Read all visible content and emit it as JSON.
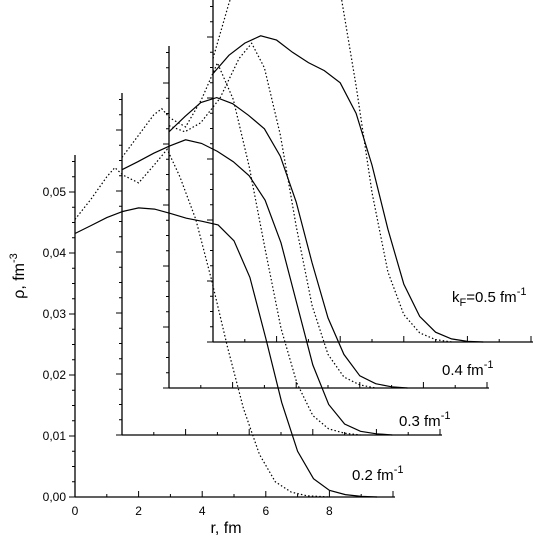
{
  "chart_data": {
    "type": "line",
    "description_free": true,
    "xlabel": "r, fm",
    "ylabel": "ρ, fm",
    "ylabel_superscript": "-3",
    "xlim": [
      0,
      10
    ],
    "ylim": [
      0,
      0.057
    ],
    "x_ticks": [
      {
        "value": 0,
        "label": "0"
      },
      {
        "value": 2,
        "label": "2"
      },
      {
        "value": 4,
        "label": "4"
      },
      {
        "value": 6,
        "label": "6"
      },
      {
        "value": 8,
        "label": "8"
      }
    ],
    "y_ticks": [
      {
        "value": 0.0,
        "label": "0,00"
      },
      {
        "value": 0.01,
        "label": "0,01"
      },
      {
        "value": 0.02,
        "label": "0,02"
      },
      {
        "value": 0.03,
        "label": "0,03"
      },
      {
        "value": 0.04,
        "label": "0,04"
      },
      {
        "value": 0.05,
        "label": "0,05"
      }
    ],
    "line_styles": {
      "solid": "#000000",
      "dotted": "#000000"
    },
    "panels": [
      {
        "label_prefix": "",
        "label_sub": "",
        "label_value": "0.2 fm",
        "label_sup": "-1",
        "solid": [
          [
            0,
            0.0432
          ],
          [
            0.5,
            0.0445
          ],
          [
            1,
            0.0458
          ],
          [
            1.5,
            0.0468
          ],
          [
            2,
            0.0474
          ],
          [
            2.5,
            0.0472
          ],
          [
            3,
            0.0465
          ],
          [
            3.5,
            0.0457
          ],
          [
            4,
            0.0452
          ],
          [
            4.5,
            0.0446
          ],
          [
            5,
            0.042
          ],
          [
            5.5,
            0.036
          ],
          [
            6,
            0.026
          ],
          [
            6.5,
            0.0155
          ],
          [
            7,
            0.0075
          ],
          [
            7.5,
            0.003
          ],
          [
            8,
            0.0011
          ],
          [
            8.5,
            0.0004
          ],
          [
            9,
            0.0001
          ],
          [
            9.5,
            0
          ]
        ],
        "dotted": [
          [
            0,
            0.0455
          ],
          [
            0.5,
            0.0488
          ],
          [
            1,
            0.0525
          ],
          [
            1.25,
            0.054
          ],
          [
            1.5,
            0.0528
          ],
          [
            2,
            0.0515
          ],
          [
            2.5,
            0.0545
          ],
          [
            2.9,
            0.057
          ],
          [
            3.3,
            0.0525
          ],
          [
            3.8,
            0.0455
          ],
          [
            4.3,
            0.0355
          ],
          [
            4.8,
            0.0245
          ],
          [
            5.3,
            0.0145
          ],
          [
            5.8,
            0.007
          ],
          [
            6.3,
            0.0025
          ],
          [
            6.8,
            0.0008
          ],
          [
            7.3,
            0.0002
          ],
          [
            8,
            0
          ]
        ]
      },
      {
        "label_prefix": "",
        "label_sub": "",
        "label_value": "0.3 fm",
        "label_sup": "-1",
        "solid": [
          [
            0,
            0.0435
          ],
          [
            0.5,
            0.0448
          ],
          [
            1,
            0.0462
          ],
          [
            1.5,
            0.0474
          ],
          [
            2,
            0.0484
          ],
          [
            2.5,
            0.0478
          ],
          [
            3,
            0.0465
          ],
          [
            3.5,
            0.0448
          ],
          [
            4,
            0.0425
          ],
          [
            4.5,
            0.0385
          ],
          [
            5,
            0.0315
          ],
          [
            5.5,
            0.0215
          ],
          [
            6,
            0.0115
          ],
          [
            6.5,
            0.005
          ],
          [
            7,
            0.0018
          ],
          [
            7.5,
            0.0006
          ],
          [
            8,
            0.0002
          ],
          [
            8.5,
            0
          ]
        ],
        "dotted": [
          [
            0,
            0.0455
          ],
          [
            0.5,
            0.049
          ],
          [
            1,
            0.0525
          ],
          [
            1.25,
            0.0535
          ],
          [
            1.5,
            0.052
          ],
          [
            2,
            0.0505
          ],
          [
            2.5,
            0.055
          ],
          [
            3.0,
            0.061
          ],
          [
            3.5,
            0.055
          ],
          [
            4,
            0.044
          ],
          [
            4.5,
            0.0305
          ],
          [
            5,
            0.0175
          ],
          [
            5.5,
            0.0085
          ],
          [
            6,
            0.0032
          ],
          [
            6.5,
            0.001
          ],
          [
            7,
            0.0003
          ],
          [
            7.5,
            0
          ]
        ]
      },
      {
        "label_prefix": "",
        "label_sub": "",
        "label_value": "0.4 fm",
        "label_sup": "-1",
        "solid": [
          [
            0,
            0.042
          ],
          [
            0.5,
            0.0445
          ],
          [
            1,
            0.0468
          ],
          [
            1.5,
            0.0476
          ],
          [
            2,
            0.0466
          ],
          [
            2.5,
            0.0447
          ],
          [
            3,
            0.0425
          ],
          [
            3.5,
            0.038
          ],
          [
            4,
            0.0305
          ],
          [
            4.5,
            0.0205
          ],
          [
            5,
            0.0115
          ],
          [
            5.5,
            0.0055
          ],
          [
            6,
            0.002
          ],
          [
            6.5,
            0.0007
          ],
          [
            7,
            0.0002
          ],
          [
            7.5,
            0
          ]
        ],
        "dotted": [
          [
            0,
            0.043
          ],
          [
            0.5,
            0.042
          ],
          [
            1,
            0.0435
          ],
          [
            1.6,
            0.0475
          ],
          [
            2.2,
            0.054
          ],
          [
            2.6,
            0.0565
          ],
          [
            3.0,
            0.0525
          ],
          [
            3.5,
            0.0415
          ],
          [
            4,
            0.0265
          ],
          [
            4.5,
            0.0135
          ],
          [
            5,
            0.0055
          ],
          [
            5.5,
            0.0018
          ],
          [
            6,
            0.0005
          ],
          [
            6.5,
            0
          ]
        ]
      },
      {
        "label_prefix": "k",
        "label_sub": "F",
        "label_value": "=0.5 fm",
        "label_sup": "-1",
        "solid": [
          [
            0,
            0.044
          ],
          [
            0.5,
            0.047
          ],
          [
            1,
            0.049
          ],
          [
            1.5,
            0.0502
          ],
          [
            2,
            0.0495
          ],
          [
            2.5,
            0.0475
          ],
          [
            3,
            0.0458
          ],
          [
            3.5,
            0.0445
          ],
          [
            4,
            0.0425
          ],
          [
            4.5,
            0.0375
          ],
          [
            5,
            0.029
          ],
          [
            5.5,
            0.0185
          ],
          [
            6,
            0.0095
          ],
          [
            6.5,
            0.0042
          ],
          [
            7,
            0.0016
          ],
          [
            7.5,
            0.0005
          ],
          [
            8,
            0.0001
          ],
          [
            8.5,
            0
          ]
        ],
        "dotted": [
          [
            0,
            0.0465
          ],
          [
            0.5,
            0.0555
          ],
          [
            1,
            0.063
          ],
          [
            1.5,
            0.0653
          ],
          [
            2,
            0.0628
          ],
          [
            2.5,
            0.0628
          ],
          [
            3,
            0.066
          ],
          [
            3.5,
            0.0655
          ],
          [
            4,
            0.0575
          ],
          [
            4.5,
            0.042
          ],
          [
            5,
            0.0245
          ],
          [
            5.5,
            0.0115
          ],
          [
            6,
            0.0045
          ],
          [
            6.5,
            0.0015
          ],
          [
            7,
            0.0004
          ],
          [
            7.5,
            0
          ]
        ]
      }
    ]
  }
}
